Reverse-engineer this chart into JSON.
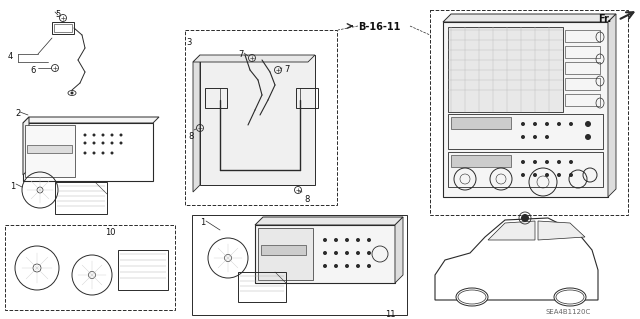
{
  "bg_color": "#ffffff",
  "line_color": "#2a2a2a",
  "gray_color": "#888888",
  "light_gray": "#cccccc",
  "figsize": [
    6.4,
    3.19
  ],
  "dpi": 100,
  "part_code": "SEA4B1120C",
  "ref_label": "B-16-11",
  "dir_label": "Fr."
}
